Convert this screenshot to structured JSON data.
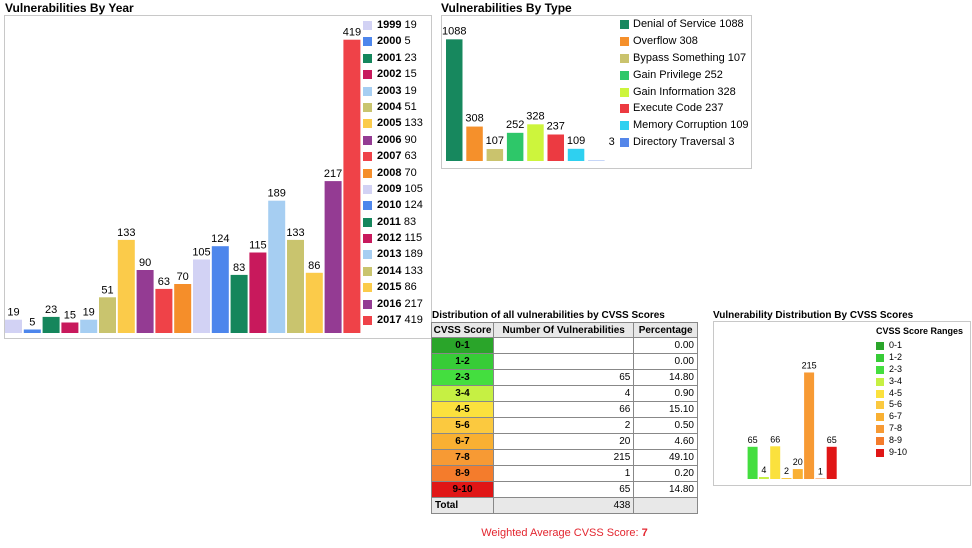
{
  "year_panel": {
    "title": "Vulnerabilities By Year"
  },
  "type_panel": {
    "title": "Vulnerabilities By Type"
  },
  "table_panel": {
    "title": "Distribution of all vulnerabilities by CVSS Scores"
  },
  "cvss_panel": {
    "title": "Vulnerability Distribution By CVSS Scores",
    "legend_title": "CVSS Score Ranges"
  },
  "chart_data": [
    {
      "id": "by_year",
      "type": "bar",
      "title": "Vulnerabilities By Year",
      "categories": [
        "1999",
        "2000",
        "2001",
        "2002",
        "2003",
        "2004",
        "2005",
        "2006",
        "2007",
        "2008",
        "2009",
        "2010",
        "2011",
        "2012",
        "2013",
        "2014",
        "2015",
        "2016",
        "2017"
      ],
      "values": [
        19,
        5,
        23,
        15,
        19,
        51,
        133,
        90,
        63,
        70,
        105,
        124,
        83,
        115,
        189,
        133,
        86,
        217,
        419
      ],
      "colors": [
        "#d2d2f4",
        "#4d86ec",
        "#15865c",
        "#c8195c",
        "#a6cef2",
        "#c9c46e",
        "#fbcb4a",
        "#943b93",
        "#ef4248",
        "#f58e2a",
        "#d2d2f4",
        "#4d86ec",
        "#15865c",
        "#c8195c",
        "#a6cef2",
        "#c9c46e",
        "#fbcb4a",
        "#943b93",
        "#ef4248"
      ],
      "ylim": [
        0,
        440
      ],
      "legend_position": "right"
    },
    {
      "id": "by_type",
      "type": "bar",
      "title": "Vulnerabilities By Type",
      "categories": [
        "Denial of Service",
        "Overflow",
        "Bypass Something",
        "Gain Privilege",
        "Gain Information",
        "Execute Code",
        "Memory Corruption",
        "Directory Traversal"
      ],
      "values": [
        1088,
        308,
        107,
        252,
        328,
        237,
        109,
        3
      ],
      "colors": [
        "#17885e",
        "#f5902b",
        "#cac36d",
        "#2ec769",
        "#cdf53c",
        "#ec3a41",
        "#2ed0f0",
        "#5486e9"
      ],
      "ylim": [
        0,
        1100
      ],
      "legend_position": "right"
    },
    {
      "id": "cvss_distribution",
      "type": "bar",
      "title": "Vulnerability Distribution By CVSS Scores",
      "categories": [
        "0-1",
        "1-2",
        "2-3",
        "3-4",
        "4-5",
        "5-6",
        "6-7",
        "7-8",
        "8-9",
        "9-10"
      ],
      "values": [
        0,
        0,
        65,
        4,
        66,
        2,
        20,
        215,
        1,
        65
      ],
      "colors": [
        "#2aa52a",
        "#37cc37",
        "#44de3f",
        "#c6f043",
        "#fbe13d",
        "#fbc93f",
        "#f9b032",
        "#f79a34",
        "#f47c2c",
        "#e01616"
      ],
      "ylim": [
        0,
        220
      ],
      "legend_title": "CVSS Score Ranges",
      "legend_position": "right"
    },
    {
      "id": "cvss_table",
      "type": "table",
      "title": "Distribution of all vulnerabilities by CVSS Scores",
      "columns": [
        "CVSS Score",
        "Number Of Vulnerabilities",
        "Percentage"
      ],
      "rows": [
        {
          "score": "0-1",
          "count": "",
          "pct": "0.00",
          "color": "#2aa52a"
        },
        {
          "score": "1-2",
          "count": "",
          "pct": "0.00",
          "color": "#37cc37"
        },
        {
          "score": "2-3",
          "count": "65",
          "pct": "14.80",
          "color": "#44de3f"
        },
        {
          "score": "3-4",
          "count": "4",
          "pct": "0.90",
          "color": "#c6f043"
        },
        {
          "score": "4-5",
          "count": "66",
          "pct": "15.10",
          "color": "#fbe13d"
        },
        {
          "score": "5-6",
          "count": "2",
          "pct": "0.50",
          "color": "#fbc93f"
        },
        {
          "score": "6-7",
          "count": "20",
          "pct": "4.60",
          "color": "#f9b032"
        },
        {
          "score": "7-8",
          "count": "215",
          "pct": "49.10",
          "color": "#f79a34"
        },
        {
          "score": "8-9",
          "count": "1",
          "pct": "0.20",
          "color": "#f47c2c"
        },
        {
          "score": "9-10",
          "count": "65",
          "pct": "14.80",
          "color": "#e01616"
        }
      ],
      "total_label": "Total",
      "total_count": "438",
      "weighted_label": "Weighted Average CVSS Score:",
      "weighted_value": "7"
    }
  ]
}
